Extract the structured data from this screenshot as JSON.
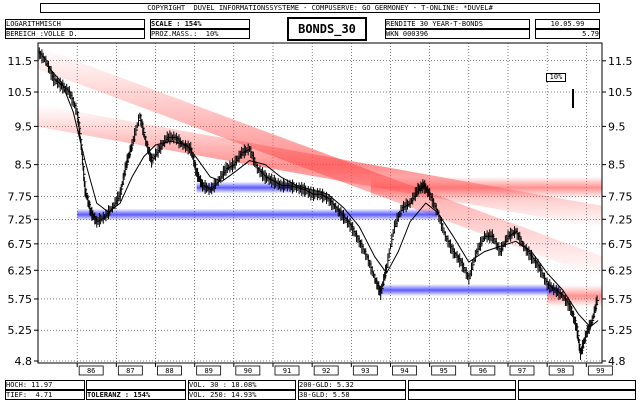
{
  "header": {
    "copyright": "COPYRIGHT  DUVEL INFORMATIONSSYSTEME - COMPUSERVE: GO GERMONEY - T-ONLINE: *DUVEL#",
    "scale_type": "LOGARITHMISCH",
    "range_label": "BEREICH :VOLLE D.",
    "scale_label": "SCALE : 154%",
    "proz_mass": "PROZ.MASS.:  10%",
    "chart_title": "BONDS_30",
    "instrument": "RENDITE 30 YEAR-T-BONDS",
    "wkn": "WKN 000396",
    "date": "10.05.99",
    "last_value": "5.79"
  },
  "scale_marker": "10%",
  "footer": {
    "hoch": "HOCH: 11.97",
    "tief": "TIEF:  4.71",
    "toleranz": "TOLERANZ : 154%",
    "vol30": "VOL. 30 : 18.08%",
    "vol250": "VOL. 250: 14.93%",
    "gld200": "200-GLD: 5.32",
    "gld38": "38-GLD: 5.58"
  },
  "chart_data": {
    "type": "line",
    "title": "BONDS_30",
    "scale": "log",
    "ylim": [
      4.8,
      11.97
    ],
    "y_ticks": [
      "11.5",
      "10.5",
      "9.5",
      "8.5",
      "7.75",
      "7.25",
      "6.75",
      "6.25",
      "5.75",
      "5.25",
      "4.8"
    ],
    "y_tick_values": [
      11.5,
      10.5,
      9.5,
      8.5,
      7.75,
      7.25,
      6.75,
      6.25,
      5.75,
      5.25,
      4.8
    ],
    "x_ticks": [
      "86",
      "87",
      "88",
      "89",
      "90",
      "91",
      "92",
      "93",
      "94",
      "95",
      "96",
      "97",
      "98",
      "99"
    ],
    "x_tick_values": [
      1986,
      1987,
      1988,
      1989,
      1990,
      1991,
      1992,
      1993,
      1994,
      1995,
      1996,
      1997,
      1998,
      1999
    ],
    "xlim": [
      1985.0,
      1999.4
    ],
    "grid": true,
    "series": [
      {
        "values": [
          [
            1985.0,
            11.8
          ],
          [
            1985.2,
            11.5
          ],
          [
            1985.4,
            10.9
          ],
          [
            1985.6,
            10.7
          ],
          [
            1985.8,
            10.5
          ],
          [
            1986.0,
            9.9
          ],
          [
            1986.1,
            9.0
          ],
          [
            1986.2,
            7.9
          ],
          [
            1986.35,
            7.4
          ],
          [
            1986.5,
            7.2
          ],
          [
            1986.7,
            7.3
          ],
          [
            1986.9,
            7.5
          ],
          [
            1987.1,
            7.8
          ],
          [
            1987.25,
            8.5
          ],
          [
            1987.4,
            9.0
          ],
          [
            1987.6,
            9.8
          ],
          [
            1987.75,
            9.1
          ],
          [
            1987.9,
            8.6
          ],
          [
            1988.1,
            8.9
          ],
          [
            1988.3,
            9.2
          ],
          [
            1988.5,
            9.2
          ],
          [
            1988.7,
            9.0
          ],
          [
            1988.9,
            8.9
          ],
          [
            1989.05,
            8.3
          ],
          [
            1989.2,
            8.0
          ],
          [
            1989.4,
            7.9
          ],
          [
            1989.6,
            8.1
          ],
          [
            1989.8,
            8.4
          ],
          [
            1990.0,
            8.5
          ],
          [
            1990.2,
            8.8
          ],
          [
            1990.4,
            8.9
          ],
          [
            1990.6,
            8.4
          ],
          [
            1990.8,
            8.2
          ],
          [
            1991.0,
            8.1
          ],
          [
            1991.2,
            8.0
          ],
          [
            1991.4,
            8.0
          ],
          [
            1991.6,
            7.95
          ],
          [
            1991.8,
            7.9
          ],
          [
            1992.0,
            7.8
          ],
          [
            1992.2,
            7.8
          ],
          [
            1992.4,
            7.7
          ],
          [
            1992.6,
            7.5
          ],
          [
            1992.8,
            7.3
          ],
          [
            1993.0,
            7.1
          ],
          [
            1993.2,
            6.8
          ],
          [
            1993.4,
            6.5
          ],
          [
            1993.6,
            6.1
          ],
          [
            1993.75,
            5.85
          ],
          [
            1993.9,
            6.3
          ],
          [
            1994.1,
            7.1
          ],
          [
            1994.3,
            7.5
          ],
          [
            1994.5,
            7.6
          ],
          [
            1994.7,
            7.9
          ],
          [
            1994.85,
            8.0
          ],
          [
            1995.0,
            7.8
          ],
          [
            1995.2,
            7.4
          ],
          [
            1995.4,
            6.9
          ],
          [
            1995.6,
            6.6
          ],
          [
            1995.8,
            6.4
          ],
          [
            1996.0,
            6.1
          ],
          [
            1996.2,
            6.6
          ],
          [
            1996.4,
            6.9
          ],
          [
            1996.6,
            6.9
          ],
          [
            1996.8,
            6.6
          ],
          [
            1997.0,
            6.9
          ],
          [
            1997.2,
            7.0
          ],
          [
            1997.4,
            6.7
          ],
          [
            1997.6,
            6.5
          ],
          [
            1997.8,
            6.3
          ],
          [
            1998.0,
            6.0
          ],
          [
            1998.2,
            5.9
          ],
          [
            1998.4,
            5.8
          ],
          [
            1998.6,
            5.6
          ],
          [
            1998.75,
            5.3
          ],
          [
            1998.85,
            4.9
          ],
          [
            1999.0,
            5.2
          ],
          [
            1999.15,
            5.4
          ],
          [
            1999.3,
            5.79
          ]
        ]
      },
      {
        "values": [
          [
            1985.2,
            11.4
          ],
          [
            1985.6,
            10.8
          ],
          [
            1985.9,
            9.9
          ],
          [
            1986.2,
            8.6
          ],
          [
            1986.5,
            7.6
          ],
          [
            1986.8,
            7.4
          ],
          [
            1987.1,
            7.6
          ],
          [
            1987.4,
            8.2
          ],
          [
            1987.7,
            8.7
          ],
          [
            1988.0,
            9.0
          ],
          [
            1988.4,
            9.1
          ],
          [
            1988.8,
            9.0
          ],
          [
            1989.1,
            8.6
          ],
          [
            1989.4,
            8.2
          ],
          [
            1989.7,
            8.1
          ],
          [
            1990.0,
            8.3
          ],
          [
            1990.4,
            8.6
          ],
          [
            1990.8,
            8.5
          ],
          [
            1991.2,
            8.2
          ],
          [
            1991.6,
            8.0
          ],
          [
            1992.0,
            7.9
          ],
          [
            1992.4,
            7.8
          ],
          [
            1992.8,
            7.5
          ],
          [
            1993.2,
            7.1
          ],
          [
            1993.6,
            6.5
          ],
          [
            1993.9,
            6.2
          ],
          [
            1994.2,
            6.6
          ],
          [
            1994.5,
            7.2
          ],
          [
            1994.9,
            7.6
          ],
          [
            1995.2,
            7.4
          ],
          [
            1995.6,
            6.9
          ],
          [
            1996.0,
            6.4
          ],
          [
            1996.4,
            6.6
          ],
          [
            1996.8,
            6.7
          ],
          [
            1997.2,
            6.8
          ],
          [
            1997.6,
            6.6
          ],
          [
            1998.0,
            6.2
          ],
          [
            1998.4,
            5.9
          ],
          [
            1998.8,
            5.5
          ],
          [
            1999.1,
            5.3
          ],
          [
            1999.3,
            5.4
          ]
        ]
      }
    ],
    "bands": [
      {
        "color": "red",
        "from": [
          1985.0,
          11.6
        ],
        "to": [
          1999.4,
          6.3
        ]
      },
      {
        "color": "red",
        "from": [
          1985.0,
          9.8
        ],
        "to": [
          1999.4,
          7.3
        ]
      },
      {
        "color": "red",
        "from": [
          1993.5,
          7.95
        ],
        "to": [
          1999.4,
          7.95
        ]
      },
      {
        "color": "red",
        "from": [
          1998.0,
          5.8
        ],
        "to": [
          1999.4,
          5.8
        ]
      },
      {
        "color": "blue",
        "from": [
          1989.05,
          7.95
        ],
        "to": [
          1991.5,
          7.95
        ]
      },
      {
        "color": "blue",
        "from": [
          1986.0,
          7.35
        ],
        "to": [
          1995.2,
          7.35
        ]
      },
      {
        "color": "blue",
        "from": [
          1993.7,
          5.9
        ],
        "to": [
          1998.3,
          5.9
        ]
      }
    ],
    "colors": {
      "red": "#ff5050",
      "blue": "#4040ff",
      "price": "#000000",
      "average": "#000000"
    }
  }
}
